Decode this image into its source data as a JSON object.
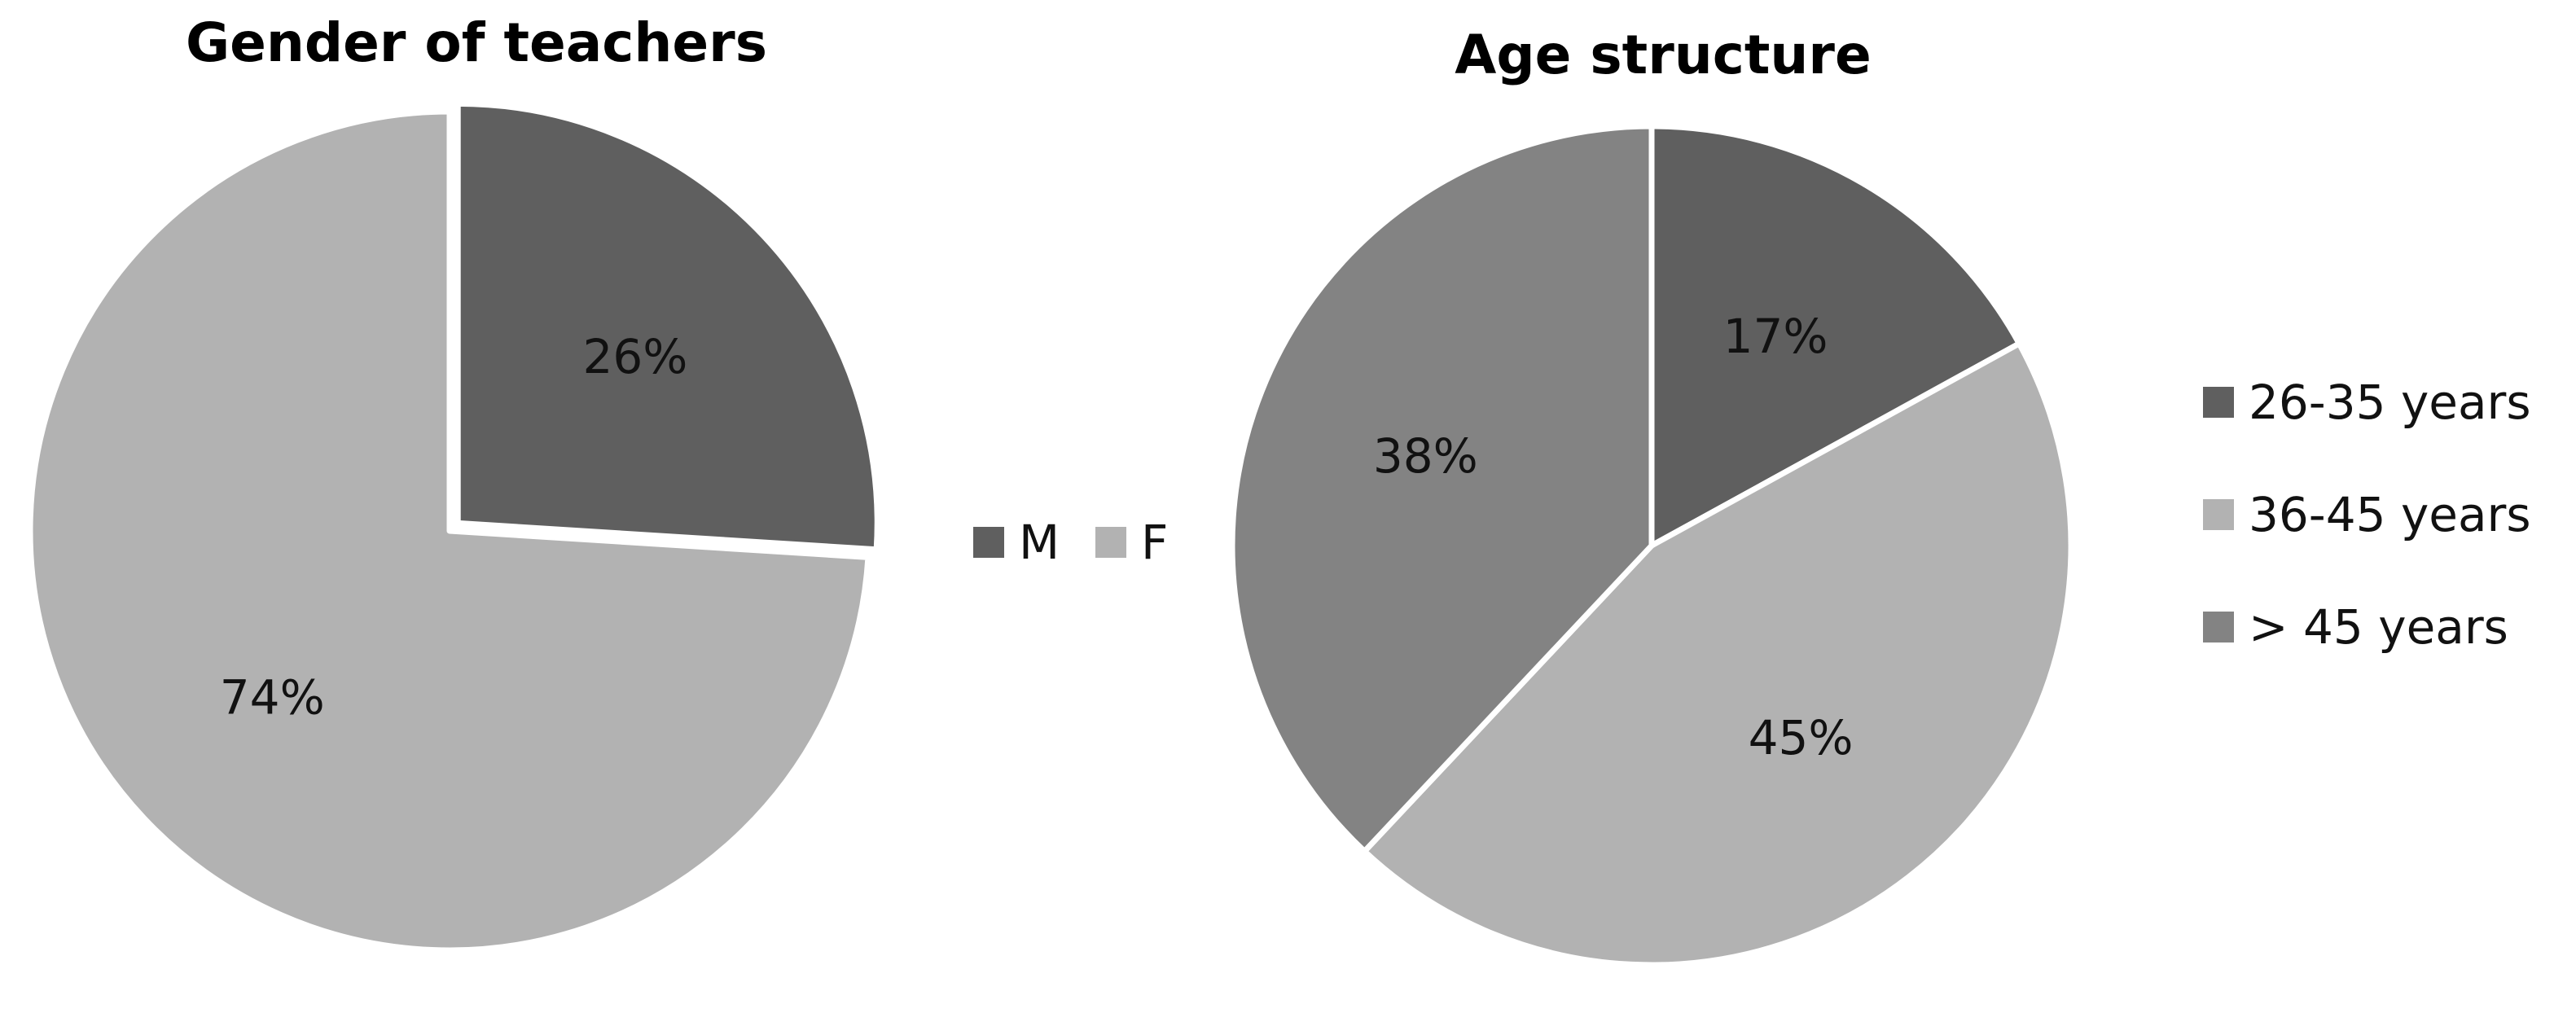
{
  "chart_data": [
    {
      "type": "pie",
      "title": "Gender of teachers",
      "categories": [
        "M",
        "F"
      ],
      "values": [
        26,
        74
      ],
      "data_labels": [
        "26%",
        "74%"
      ],
      "colors": [
        "#5f5f5f",
        "#b2b2b2"
      ],
      "legend": {
        "placement": "right",
        "orientation": "horizontal",
        "entries": [
          "M",
          "F"
        ]
      }
    },
    {
      "type": "pie",
      "title": "Age structure",
      "categories": [
        "26-35 years",
        "36-45 years",
        "> 45 years"
      ],
      "values": [
        17,
        45,
        38
      ],
      "data_labels": [
        "17%",
        "45%",
        "38%"
      ],
      "colors": [
        "#5f5f5f",
        "#b2b2b2",
        "#838383"
      ],
      "legend": {
        "placement": "right",
        "orientation": "vertical",
        "entries": [
          "26-35 years",
          "36-45 years",
          "> 45 years"
        ]
      }
    }
  ]
}
